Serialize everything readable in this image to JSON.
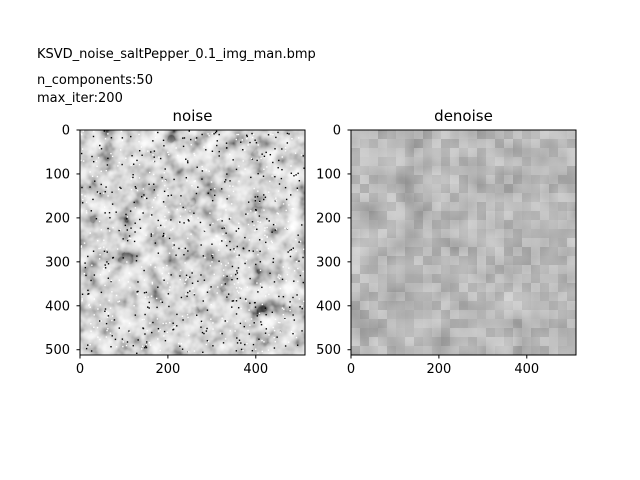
{
  "figure": {
    "suptitle": "KSVD_noise_saltPepper_0.1_img_man.bmp",
    "params": [
      "n_components:50",
      "max_iter:200"
    ]
  },
  "chart_data": [
    {
      "type": "heatmap",
      "title": "noise",
      "xlabel": "",
      "ylabel": "",
      "xlim": [
        0,
        512
      ],
      "ylim": [
        512,
        0
      ],
      "x_ticks": [
        0,
        200,
        400
      ],
      "y_ticks": [
        0,
        100,
        200,
        300,
        400,
        500
      ],
      "colormap": "gray",
      "noise": "salt-and-pepper"
    },
    {
      "type": "heatmap",
      "title": "denoise",
      "xlabel": "",
      "ylabel": "",
      "xlim": [
        0,
        512
      ],
      "ylim": [
        512,
        0
      ],
      "x_ticks": [
        0,
        200,
        400
      ],
      "y_ticks": [
        0,
        100,
        200,
        300,
        400,
        500
      ],
      "colormap": "gray",
      "noise": "none"
    }
  ]
}
